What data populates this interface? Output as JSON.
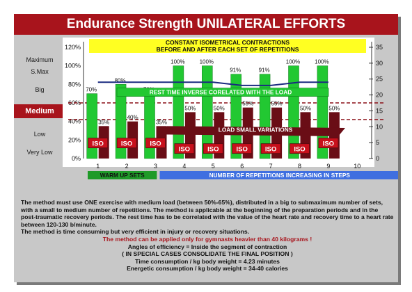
{
  "title": "Endurance Strength UNILATERAL EFFORTS",
  "level_labels": [
    "Maximum",
    "S.Max",
    "Big",
    "Medium",
    "Low",
    "Very Low"
  ],
  "banner_top_1": "CONSTANT ISOMETRICAL CONTRACTIONS",
  "banner_top_2": "BEFORE AND AFTER EACH SET OF REPETITIONS",
  "banner_rest": "REST TIME INVERSE CORELATED WITH THE LOAD",
  "banner_load": "LOAD SMALL VARIATIONS",
  "footer_left": "WARM UP SETS",
  "footer_right": "NUMBER OF REPETITIONS INCREASING IN STEPS",
  "iso_label": "ISO",
  "colors": {
    "title": "#a8141c",
    "green": "#22c832",
    "darkred": "#6a0d16",
    "isoRed": "#c8101c",
    "yellow": "#ffff22",
    "navy": "#1a2a80",
    "blue": "#3f6fe0",
    "panel": "#c8c8c8"
  },
  "chart_data": {
    "type": "bar",
    "categories": [
      "1",
      "2",
      "3",
      "4",
      "5",
      "6",
      "7",
      "8",
      "9",
      "10"
    ],
    "left_axis_ticks": [
      "0%",
      "20%",
      "40%",
      "60%",
      "80%",
      "100%",
      "120%"
    ],
    "right_axis_ticks": [
      "0",
      "5",
      "10",
      "15",
      "20",
      "25",
      "30",
      "35"
    ],
    "ylim_left": [
      0,
      120
    ],
    "ylim_right": [
      0,
      35
    ],
    "series": [
      {
        "values": [
          70,
          80,
          70,
          100,
          100,
          91,
          91,
          100,
          100,
          null
        ]
      },
      {
        "values": [
          35,
          40,
          35,
          50,
          50,
          55,
          55,
          50,
          50,
          null
        ]
      }
    ],
    "load_labels": [
      "70%",
      "80%",
      "70%",
      "100%",
      "100%",
      "91%",
      "91%",
      "100%",
      "100%",
      ""
    ],
    "load_small_labels": [
      "35%",
      "40%",
      "35%",
      "50%",
      "50%",
      "55%",
      "55%",
      "50%",
      "50%",
      ""
    ],
    "rest_line": [
      24,
      24,
      24,
      24,
      24,
      23,
      23,
      24,
      24,
      null
    ],
    "dashed_upper_pct": 60,
    "dashed_lower_pct": 42
  },
  "notes": {
    "p1": "The method must use ONE exercise with medium load (between 50%-65%), distributed in a big to submaximum number of sets, with a small to medium number of repetitions. The method is applicable at the beginning of the preparation periods and in the post-traumatic recovery periods. The rest time has to be correlated with the value of the heart rate and recovery time to a heart rate between 120-130 b/minute.",
    "p2": "The method is time consuming but very efficient in injury or recovery situations.",
    "p3": "The method can be applied only for gymnasts heavier than 40 kilograms !",
    "p4": "Angles of efficiency =  Inside the segment of contraction",
    "p5": "( IN SPECIAL CASES CONSOLIDATE THE FINAL POSITION )",
    "p6": "Time consumption /  kg body weight = 4.23 minutes",
    "p7": "Energetic consumption /  kg body weight =  34-40  calories"
  }
}
